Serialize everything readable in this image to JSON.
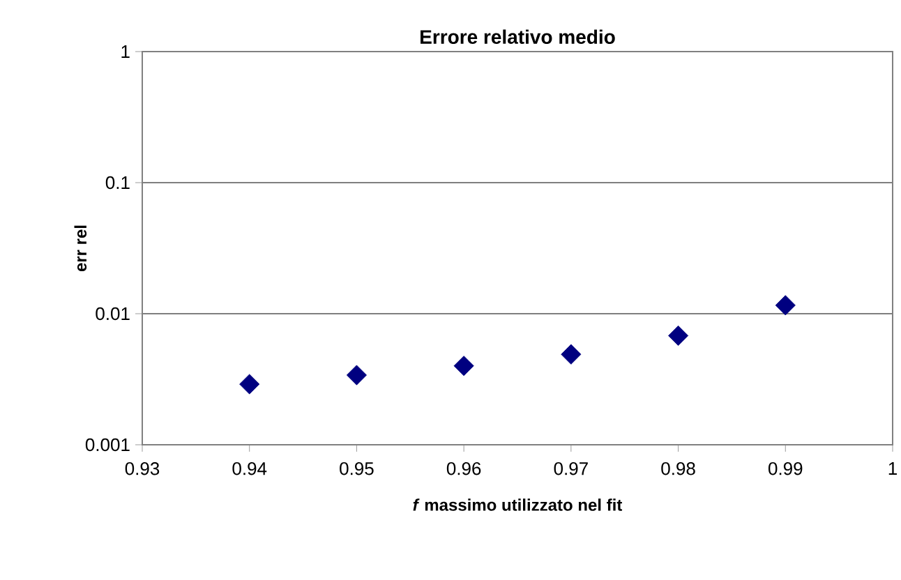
{
  "chart_data": {
    "type": "scatter",
    "title": "Errore relativo medio",
    "xlabel": "*f* massimo utilizzato nel fit",
    "ylabel": "err rel",
    "x": [
      0.94,
      0.95,
      0.96,
      0.97,
      0.98,
      0.99
    ],
    "series": [
      {
        "color": "#000080",
        "values": [
          0.0029,
          0.0034,
          0.004,
          0.0049,
          0.0068,
          0.0116
        ]
      }
    ],
    "marker": "diamond",
    "log": "y",
    "grid": "y",
    "xlim": [
      0.93,
      1
    ],
    "xticks": [
      0.93,
      0.94,
      0.95,
      0.96,
      0.97,
      0.98,
      0.99,
      1
    ],
    "ylim": [
      0.001,
      1
    ],
    "yticks": [
      0.001,
      0.01,
      0.1,
      1
    ]
  }
}
